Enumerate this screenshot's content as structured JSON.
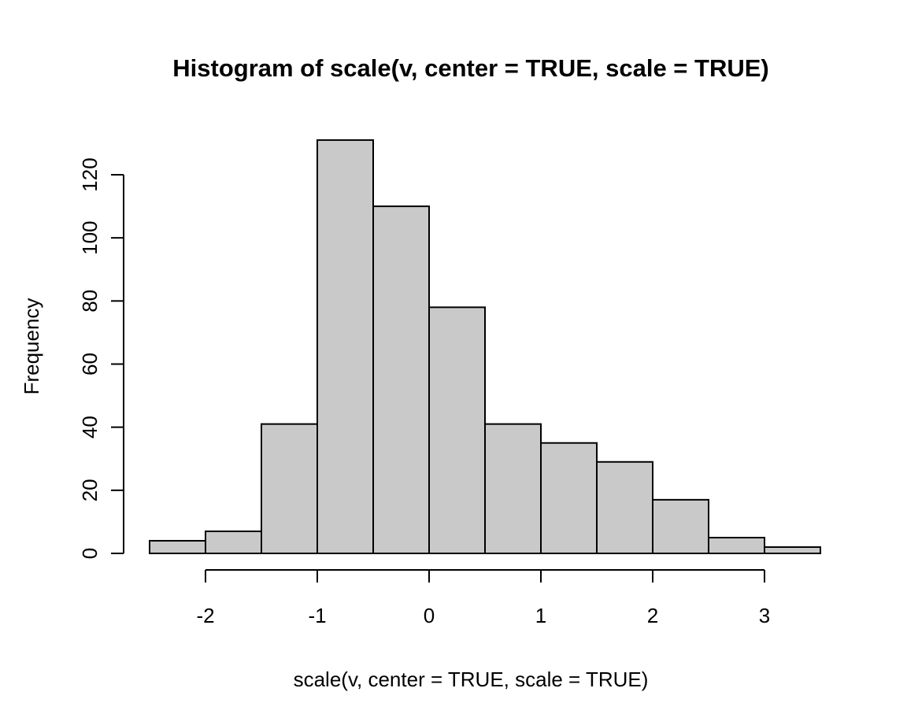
{
  "chart_data": {
    "type": "histogram",
    "title": "Histogram of scale(v, center = TRUE, scale = TRUE)",
    "xlabel": "scale(v, center = TRUE, scale = TRUE)",
    "ylabel": "Frequency",
    "breaks": [
      -2.5,
      -2.0,
      -1.5,
      -1.0,
      -0.5,
      0.0,
      0.5,
      1.0,
      1.5,
      2.0,
      2.5,
      3.0,
      3.5
    ],
    "counts": [
      4,
      7,
      41,
      131,
      110,
      78,
      41,
      35,
      29,
      17,
      5,
      2
    ],
    "total_count": 500,
    "x_ticks": [
      "-2",
      "-1",
      "0",
      "1",
      "2",
      "3"
    ],
    "x_tick_values": [
      -2,
      -1,
      0,
      1,
      2,
      3
    ],
    "y_ticks": [
      "0",
      "20",
      "40",
      "60",
      "80",
      "100",
      "120"
    ],
    "y_tick_values": [
      0,
      20,
      40,
      60,
      80,
      100,
      120
    ],
    "xlim": [
      -2.5,
      3.5
    ],
    "ylim": [
      0,
      131
    ],
    "grid": false,
    "legend": null,
    "bar_fill": "#C9C9C9",
    "bar_border": "#000000",
    "axis_color": "#000000",
    "text_color": "#000000",
    "background": "#FFFFFF"
  }
}
